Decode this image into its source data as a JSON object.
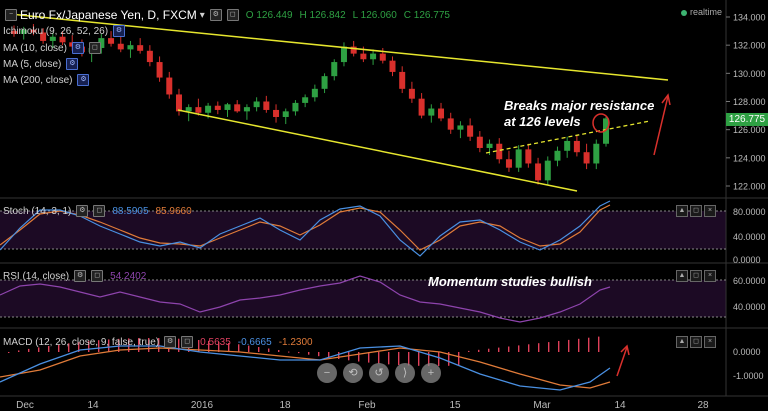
{
  "header": {
    "symbol": "Euro Fx/Japanese Yen, D, FXCM",
    "dropdown": "▾",
    "ohlc_o": "O 126.449",
    "ohlc_h": "H 126.842",
    "ohlc_l": "L 126.060",
    "ohlc_c": "C 126.775",
    "realtime": "realtime"
  },
  "indicators": {
    "ichimoku": "Ichimoku (9, 26, 52, 26)",
    "ma10": "MA (10, close)",
    "ma5": "MA (5, close)",
    "ma200": "MA (200, close)"
  },
  "price_axis": {
    "labels": [
      "134.000",
      "132.000",
      "130.000",
      "128.000",
      "126.000",
      "124.000",
      "122.000"
    ],
    "current": "126.775"
  },
  "stoch": {
    "title": "Stoch (14, 3, 1)",
    "k": "88.5905",
    "d": "85.9660",
    "axis": [
      "80.0000",
      "40.0000",
      "0.0000"
    ]
  },
  "rsi": {
    "title": "RSI (14, close)",
    "value": "54.2402",
    "axis": [
      "60.0000",
      "40.0000"
    ]
  },
  "macd": {
    "title": "MACD (12, 26, close, 9, false, true)",
    "hist": "0.5635",
    "macd": "-0.6665",
    "signal": "-1.2300",
    "axis": [
      "0.0000",
      "-1.0000"
    ]
  },
  "time_axis": [
    "Dec",
    "14",
    "2016",
    "18",
    "Feb",
    "15",
    "Mar",
    "14",
    "28"
  ],
  "annotations": {
    "resistance_line1": "Breaks major resistance",
    "resistance_line2": "at 126 levels",
    "momentum": "Momentum studies bullish"
  },
  "nav_buttons": [
    "−",
    "⟲",
    "↺",
    "⟩",
    "+"
  ],
  "colors": {
    "up": "#2ea043",
    "down": "#d9302c",
    "trend": "#e6e62e",
    "stoch_k": "#4a90e2",
    "stoch_d": "#e07b39",
    "rsi": "#8e44ad",
    "pane_bg": "#1c0a24"
  },
  "chart_data": {
    "type": "candlestick",
    "ylim": [
      121.5,
      134.5
    ],
    "candles": [
      [
        133.0,
        133.4,
        132.6,
        132.8
      ],
      [
        132.8,
        133.3,
        132.4,
        133.1
      ],
      [
        133.1,
        133.5,
        132.7,
        132.9
      ],
      [
        132.9,
        133.2,
        132.1,
        132.3
      ],
      [
        132.3,
        132.9,
        131.8,
        132.6
      ],
      [
        132.6,
        133.0,
        132.0,
        132.2
      ],
      [
        132.2,
        132.7,
        131.6,
        131.9
      ],
      [
        131.9,
        132.4,
        131.2,
        131.5
      ],
      [
        131.5,
        132.0,
        130.8,
        131.8
      ],
      [
        131.8,
        132.8,
        131.4,
        132.5
      ],
      [
        132.5,
        133.0,
        131.9,
        132.1
      ],
      [
        132.1,
        132.6,
        131.5,
        131.7
      ],
      [
        131.7,
        132.3,
        131.1,
        132.0
      ],
      [
        132.0,
        132.5,
        131.4,
        131.6
      ],
      [
        131.6,
        132.0,
        130.5,
        130.8
      ],
      [
        130.8,
        131.2,
        129.4,
        129.7
      ],
      [
        129.7,
        130.1,
        128.2,
        128.5
      ],
      [
        128.5,
        128.9,
        127.0,
        127.3
      ],
      [
        127.3,
        127.8,
        126.6,
        127.6
      ],
      [
        127.6,
        128.2,
        127.0,
        127.2
      ],
      [
        127.2,
        127.9,
        126.8,
        127.7
      ],
      [
        127.7,
        128.0,
        127.1,
        127.4
      ],
      [
        127.4,
        127.9,
        126.9,
        127.8
      ],
      [
        127.8,
        128.1,
        127.2,
        127.3
      ],
      [
        127.3,
        127.8,
        126.7,
        127.6
      ],
      [
        127.6,
        128.3,
        127.3,
        128.0
      ],
      [
        128.0,
        128.4,
        127.2,
        127.4
      ],
      [
        127.4,
        127.8,
        126.5,
        126.9
      ],
      [
        126.9,
        127.5,
        126.4,
        127.3
      ],
      [
        127.3,
        128.1,
        127.0,
        127.9
      ],
      [
        127.9,
        128.5,
        127.6,
        128.3
      ],
      [
        128.3,
        129.2,
        128.0,
        128.9
      ],
      [
        128.9,
        130.0,
        128.6,
        129.8
      ],
      [
        129.8,
        131.0,
        129.5,
        130.8
      ],
      [
        130.8,
        132.2,
        130.5,
        131.9
      ],
      [
        131.9,
        132.3,
        131.2,
        131.4
      ],
      [
        131.4,
        131.9,
        130.8,
        131.0
      ],
      [
        131.0,
        131.7,
        130.6,
        131.4
      ],
      [
        131.4,
        131.8,
        130.7,
        130.9
      ],
      [
        130.9,
        131.2,
        129.8,
        130.1
      ],
      [
        130.1,
        130.5,
        128.6,
        128.9
      ],
      [
        128.9,
        129.4,
        127.9,
        128.2
      ],
      [
        128.2,
        128.6,
        126.8,
        127.0
      ],
      [
        127.0,
        127.8,
        126.5,
        127.5
      ],
      [
        127.5,
        127.9,
        126.6,
        126.8
      ],
      [
        126.8,
        127.2,
        125.7,
        126.0
      ],
      [
        126.0,
        126.6,
        125.4,
        126.3
      ],
      [
        126.3,
        126.8,
        125.2,
        125.5
      ],
      [
        125.5,
        125.9,
        124.4,
        124.7
      ],
      [
        124.7,
        125.3,
        124.2,
        125.0
      ],
      [
        125.0,
        125.4,
        123.6,
        123.9
      ],
      [
        123.9,
        124.5,
        123.0,
        123.3
      ],
      [
        123.3,
        124.9,
        123.0,
        124.6
      ],
      [
        124.6,
        125.0,
        123.3,
        123.6
      ],
      [
        123.6,
        124.0,
        122.1,
        122.4
      ],
      [
        122.4,
        124.1,
        122.1,
        123.8
      ],
      [
        123.8,
        124.8,
        123.4,
        124.5
      ],
      [
        124.5,
        125.5,
        124.0,
        125.2
      ],
      [
        125.2,
        125.6,
        124.1,
        124.4
      ],
      [
        124.4,
        125.0,
        123.2,
        123.6
      ],
      [
        123.6,
        125.3,
        123.2,
        125.0
      ],
      [
        125.0,
        126.9,
        124.8,
        126.8
      ]
    ]
  }
}
